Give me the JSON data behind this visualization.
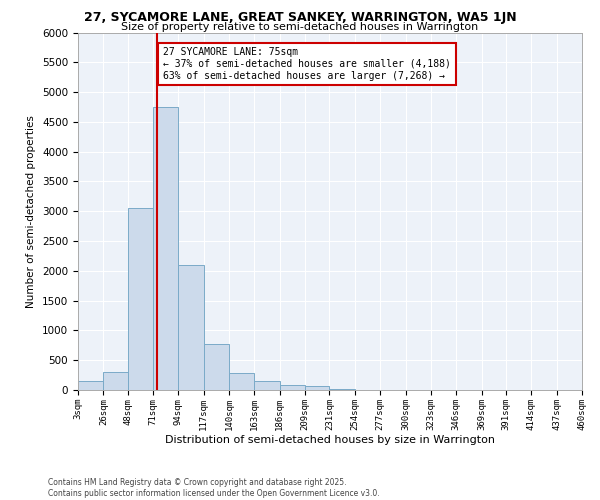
{
  "title1": "27, SYCAMORE LANE, GREAT SANKEY, WARRINGTON, WA5 1JN",
  "title2": "Size of property relative to semi-detached houses in Warrington",
  "xlabel": "Distribution of semi-detached houses by size in Warrington",
  "ylabel": "Number of semi-detached properties",
  "footer1": "Contains HM Land Registry data © Crown copyright and database right 2025.",
  "footer2": "Contains public sector information licensed under the Open Government Licence v3.0.",
  "annotation_title": "27 SYCAMORE LANE: 75sqm",
  "annotation_line1": "← 37% of semi-detached houses are smaller (4,188)",
  "annotation_line2": "63% of semi-detached houses are larger (7,268) →",
  "property_size": 75,
  "bar_color": "#ccdaeb",
  "bar_edge_color": "#7aaac8",
  "vline_color": "#cc0000",
  "annotation_box_color": "#cc0000",
  "background_color": "#edf2f9",
  "bins": [
    3,
    26,
    48,
    71,
    94,
    117,
    140,
    163,
    186,
    209,
    231,
    254,
    277,
    300,
    323,
    346,
    369,
    391,
    414,
    437,
    460
  ],
  "bin_labels": [
    "3sqm",
    "26sqm",
    "48sqm",
    "71sqm",
    "94sqm",
    "117sqm",
    "140sqm",
    "163sqm",
    "186sqm",
    "209sqm",
    "231sqm",
    "254sqm",
    "277sqm",
    "300sqm",
    "323sqm",
    "346sqm",
    "369sqm",
    "391sqm",
    "414sqm",
    "437sqm",
    "460sqm"
  ],
  "values": [
    150,
    300,
    3050,
    4750,
    2100,
    780,
    290,
    150,
    90,
    60,
    15,
    8,
    4,
    2,
    1,
    1,
    0,
    0,
    0,
    0
  ],
  "ylim": [
    0,
    6000
  ],
  "yticks": [
    0,
    500,
    1000,
    1500,
    2000,
    2500,
    3000,
    3500,
    4000,
    4500,
    5000,
    5500,
    6000
  ]
}
